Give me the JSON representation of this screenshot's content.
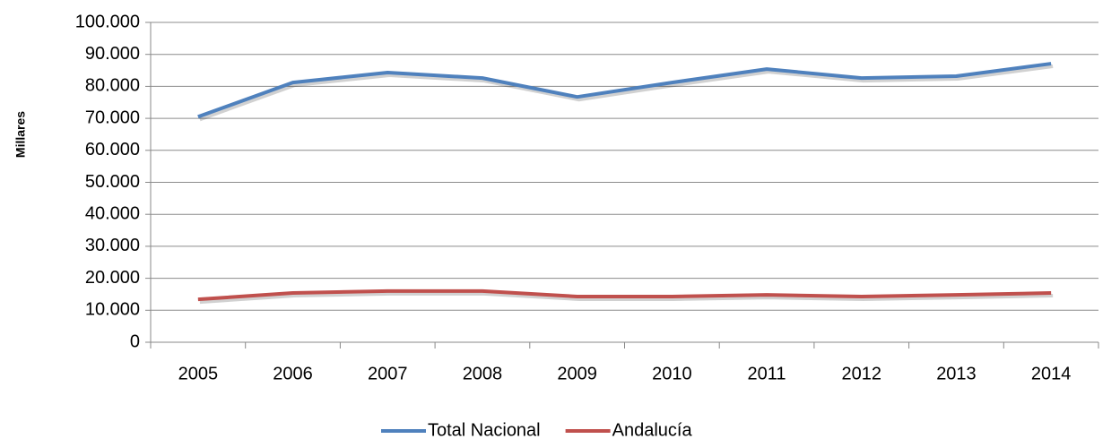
{
  "chart_data": {
    "type": "line",
    "y_label": "Millares",
    "categories": [
      "2005",
      "2006",
      "2007",
      "2008",
      "2009",
      "2010",
      "2011",
      "2012",
      "2013",
      "2014"
    ],
    "series": [
      {
        "name": "Total Nacional",
        "color": "#4f81bd",
        "values": [
          70500,
          81200,
          84300,
          82600,
          76700,
          81200,
          85400,
          82600,
          83200,
          87100
        ]
      },
      {
        "name": "Andalucía",
        "color": "#c0504d",
        "values": [
          13400,
          15400,
          16000,
          16000,
          14300,
          14300,
          14800,
          14300,
          14800,
          15400
        ]
      }
    ],
    "ylim": [
      0,
      100000
    ],
    "yticks": [
      0,
      {
        "value": 10000,
        "label": "10.000"
      },
      {
        "value": 20000,
        "label": "20.000"
      },
      {
        "value": 30000,
        "label": "30.000"
      },
      {
        "value": 40000,
        "label": "40.000"
      },
      {
        "value": 50000,
        "label": "50.000"
      },
      {
        "value": 60000,
        "label": "60.000"
      },
      {
        "value": 70000,
        "label": "70.000"
      },
      {
        "value": 80000,
        "label": "80.000"
      },
      {
        "value": 90000,
        "label": "90.000"
      },
      {
        "value": 100000,
        "label": "100.000"
      }
    ],
    "grid": true,
    "legend": "bottom"
  }
}
